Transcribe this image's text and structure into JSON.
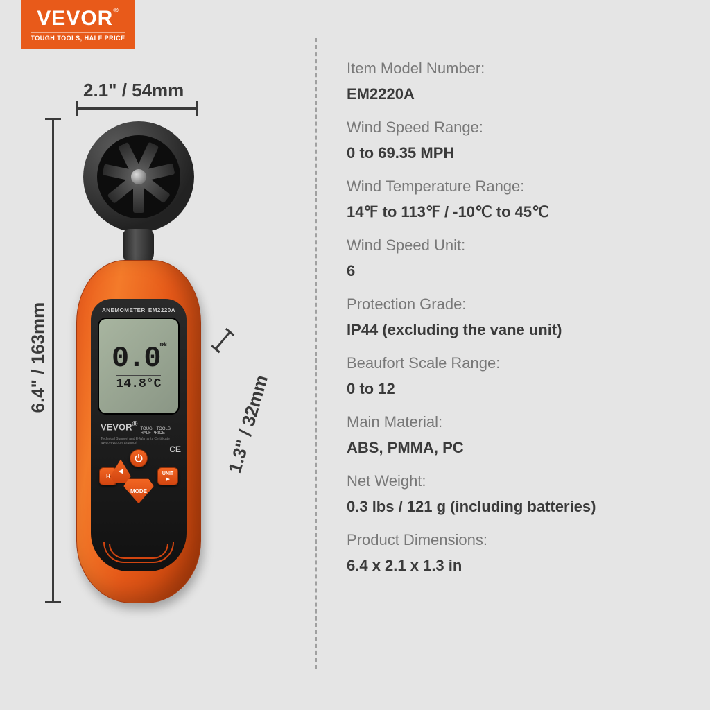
{
  "colors": {
    "background": "#e5e5e5",
    "brand_orange": "#e85a1a",
    "device_orange_light": "#f47b2a",
    "device_orange_dark": "#c2410a",
    "text_label": "#787878",
    "text_value": "#3a3a3a",
    "lcd_bg": "#8a9685",
    "panel_black": "#1a1a1a",
    "divider": "#a0a0a0"
  },
  "logo": {
    "brand": "VEVOR",
    "reg": "®",
    "tagline": "TOUGH TOOLS, HALF PRICE"
  },
  "dimensions": {
    "height": "6.4\" / 163mm",
    "width": "2.1\" / 54mm",
    "depth": "1.3\" / 32mm"
  },
  "device": {
    "label_left": "ANEMOMETER",
    "label_right": "EM2220A",
    "lcd_main": "0.0",
    "lcd_main_unit": "m/s",
    "lcd_sub": "14.8°C",
    "brand": "VEVOR",
    "brand_reg": "®",
    "brand_tag": "TOUGH TOOLS, HALF PRICE",
    "support_line": "Technical Support and E-Warranty Certificate  www.vevor.com/support",
    "ce": "CE",
    "buttons": {
      "power": "⏻",
      "hold": "H",
      "unit": "UNIT",
      "unit_arrow": "▶",
      "left_arrow": "◀",
      "mode": "MODE",
      "mode_arrow": "▼"
    }
  },
  "specs": [
    {
      "label": "Item Model Number:",
      "value": "EM2220A"
    },
    {
      "label": "Wind Speed Range:",
      "value": "0 to 69.35 MPH"
    },
    {
      "label": "Wind Temperature Range:",
      "value": "14℉ to 113℉ / -10℃ to 45℃"
    },
    {
      "label": "Wind Speed Unit:",
      "value": "6"
    },
    {
      "label": "Protection Grade:",
      "value": "IP44 (excluding the vane unit)"
    },
    {
      "label": "Beaufort Scale Range:",
      "value": "0 to 12"
    },
    {
      "label": "Main Material:",
      "value": "ABS, PMMA, PC"
    },
    {
      "label": "Net Weight:",
      "value": "0.3 lbs / 121 g (including batteries)"
    },
    {
      "label": "Product Dimensions:",
      "value": "6.4 x 2.1 x 1.3 in"
    }
  ]
}
